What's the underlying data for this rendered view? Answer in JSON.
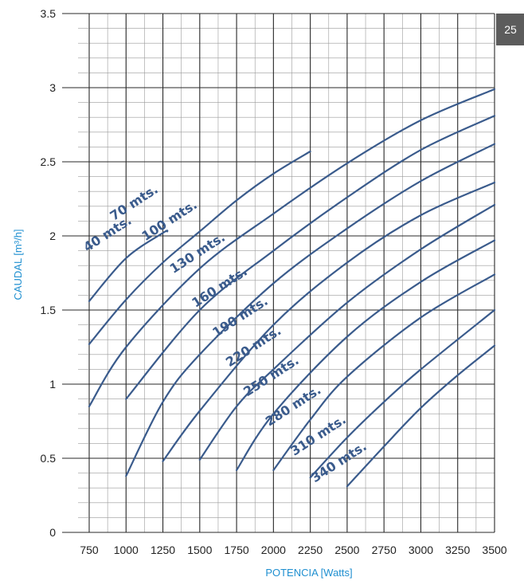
{
  "page_number": "25",
  "chart_data": {
    "type": "line",
    "xlabel": "POTENCIA [Watts]",
    "ylabel": "CAUDAL [m³/h]",
    "xlim": [
      750,
      3500
    ],
    "ylim": [
      0,
      3.5
    ],
    "x_ticks": [
      "750",
      "1000",
      "1250",
      "1500",
      "1750",
      "2000",
      "2250",
      "2500",
      "2750",
      "3000",
      "3250",
      "3500"
    ],
    "y_ticks": [
      "0",
      "0.5",
      "1",
      "1.5",
      "2",
      "2.5",
      "3",
      "3.5"
    ],
    "grid": true,
    "series": [
      {
        "name": "40 mts.",
        "x": [
          750,
          1000,
          1250,
          1280
        ],
        "y": [
          1.56,
          1.85,
          2.02,
          2.03
        ]
      },
      {
        "name": "70 mts.",
        "x": [
          750,
          1000,
          1250,
          1500,
          1750,
          2000,
          2250
        ],
        "y": [
          1.27,
          1.57,
          1.82,
          2.03,
          2.24,
          2.42,
          2.57
        ]
      },
      {
        "name": "100 mts.",
        "x": [
          750,
          1000,
          1500,
          2000,
          2500,
          3000,
          3500
        ],
        "y": [
          0.85,
          1.25,
          1.78,
          2.15,
          2.49,
          2.78,
          2.99
        ]
      },
      {
        "name": "130 mts.",
        "x": [
          1000,
          1500,
          2000,
          2500,
          3000,
          3500
        ],
        "y": [
          0.9,
          1.5,
          1.9,
          2.26,
          2.58,
          2.81
        ]
      },
      {
        "name": "160 mts.",
        "x": [
          1000,
          1250,
          1500,
          2000,
          2500,
          3000,
          3500
        ],
        "y": [
          0.38,
          0.88,
          1.2,
          1.68,
          2.05,
          2.37,
          2.62
        ]
      },
      {
        "name": "190 mts.",
        "x": [
          1250,
          1500,
          2000,
          2500,
          3000,
          3500
        ],
        "y": [
          0.48,
          0.82,
          1.4,
          1.82,
          2.14,
          2.36
        ]
      },
      {
        "name": "220 mts.",
        "x": [
          1500,
          1750,
          2000,
          2500,
          3000,
          3500
        ],
        "y": [
          0.49,
          0.85,
          1.1,
          1.55,
          1.91,
          2.21
        ]
      },
      {
        "name": "250 mts.",
        "x": [
          1750,
          2000,
          2500,
          3000,
          3500
        ],
        "y": [
          0.42,
          0.8,
          1.32,
          1.69,
          1.97
        ]
      },
      {
        "name": "280 mts.",
        "x": [
          2000,
          2250,
          2500,
          3000,
          3500
        ],
        "y": [
          0.42,
          0.76,
          1.05,
          1.45,
          1.74
        ]
      },
      {
        "name": "310 mts.",
        "x": [
          2250,
          2500,
          2750,
          3000,
          3500
        ],
        "y": [
          0.37,
          0.64,
          0.88,
          1.1,
          1.5
        ]
      },
      {
        "name": "340 mts.",
        "x": [
          2500,
          2750,
          3000,
          3250,
          3500
        ],
        "y": [
          0.31,
          0.58,
          0.84,
          1.06,
          1.26
        ]
      }
    ]
  }
}
